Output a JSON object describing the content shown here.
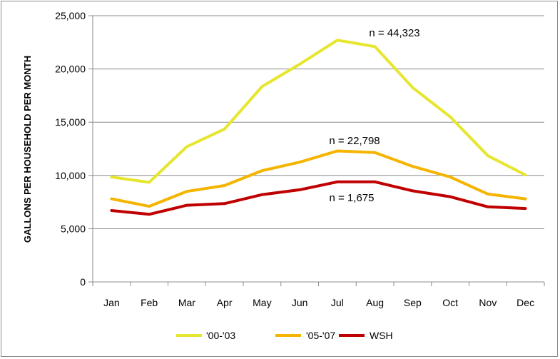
{
  "chart_data": {
    "type": "line",
    "title": "",
    "xlabel": "",
    "ylabel": "GALLONS PER HOUSEHOLD PER MONTH",
    "categories": [
      "Jan",
      "Feb",
      "Mar",
      "Apr",
      "May",
      "Jun",
      "Jul",
      "Aug",
      "Sep",
      "Oct",
      "Nov",
      "Dec"
    ],
    "ylim": [
      0,
      25000
    ],
    "yticks": [
      0,
      5000,
      10000,
      15000,
      20000,
      25000
    ],
    "ytick_labels": [
      "0",
      "5,000",
      "10,000",
      "15,000",
      "20,000",
      "25,000"
    ],
    "grid": "horizontal",
    "legend": "bottom",
    "series": [
      {
        "name": "'00-'03",
        "color": "#e6e62e",
        "values": [
          9850,
          9350,
          12700,
          14350,
          18350,
          20450,
          22700,
          22100,
          18250,
          15500,
          11850,
          10050
        ]
      },
      {
        "name": "'05-'07",
        "color": "#f5b400",
        "values": [
          7800,
          7100,
          8500,
          9050,
          10450,
          11250,
          12300,
          12150,
          10850,
          9850,
          8250,
          7800
        ]
      },
      {
        "name": "WSH",
        "color": "#c00000",
        "values": [
          6700,
          6350,
          7200,
          7350,
          8200,
          8650,
          9400,
          9400,
          8550,
          8000,
          7050,
          6900
        ]
      }
    ],
    "annotations": [
      {
        "text": "n = 44,323",
        "series": 0
      },
      {
        "text": "n = 22,798",
        "series": 1
      },
      {
        "text": "n = 1,675",
        "series": 2
      }
    ]
  }
}
